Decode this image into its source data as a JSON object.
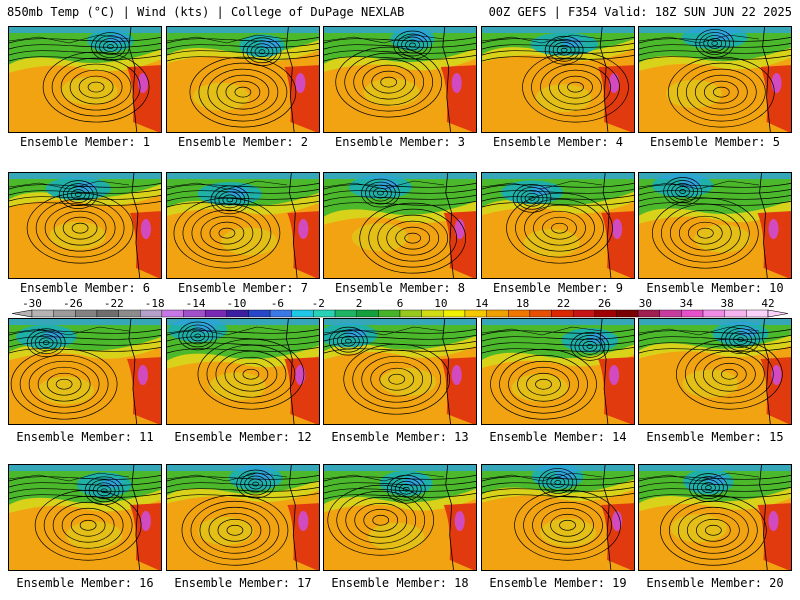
{
  "header": {
    "left_text": "850mb Temp (°C) | Wind (kts) | College of DuPage NEXLAB",
    "right_text": "00Z GEFS | F354 Valid: 18Z SUN JUN 22 2025"
  },
  "members": [
    "Ensemble Member: 1",
    "Ensemble Member: 2",
    "Ensemble Member: 3",
    "Ensemble Member: 4",
    "Ensemble Member: 5",
    "Ensemble Member: 6",
    "Ensemble Member: 7",
    "Ensemble Member: 8",
    "Ensemble Member: 9",
    "Ensemble Member: 10",
    "Ensemble Member: 11",
    "Ensemble Member: 12",
    "Ensemble Member: 13",
    "Ensemble Member: 14",
    "Ensemble Member: 15",
    "Ensemble Member: 16",
    "Ensemble Member: 17",
    "Ensemble Member: 18",
    "Ensemble Member: 19",
    "Ensemble Member: 20"
  ],
  "colorbar": {
    "tick_labels": [
      "-30",
      "-26",
      "-22",
      "-18",
      "-14",
      "-10",
      "-6",
      "-2",
      "2",
      "6",
      "10",
      "14",
      "18",
      "22",
      "26",
      "30",
      "34",
      "38",
      "42"
    ],
    "colors": [
      "#b4b4b4",
      "#9b9b9b",
      "#828282",
      "#6e6e6e",
      "#8c8c8c",
      "#b4a0c8",
      "#c878e6",
      "#a050c8",
      "#7828b4",
      "#3c1ea0",
      "#2846c8",
      "#3c78e6",
      "#1ec8e6",
      "#28d2b4",
      "#1eb464",
      "#14a03c",
      "#46b428",
      "#96c81e",
      "#d2dc14",
      "#f0f000",
      "#f5c800",
      "#f0a000",
      "#f07800",
      "#e65000",
      "#dc2800",
      "#c81414",
      "#a00000",
      "#780000",
      "#a01e50",
      "#c83ca0",
      "#e650c8",
      "#f08ce6",
      "#f5b4f0",
      "#fad2fa"
    ]
  },
  "map_colors": {
    "warm": "#f2a312",
    "hot": "#e23a0f",
    "mild": "#d9d21a",
    "cool": "#4cb82c",
    "cold": "#1fb0a8",
    "colder": "#2fa3dc",
    "pink": "#d24ac0",
    "contour": "#000000"
  }
}
